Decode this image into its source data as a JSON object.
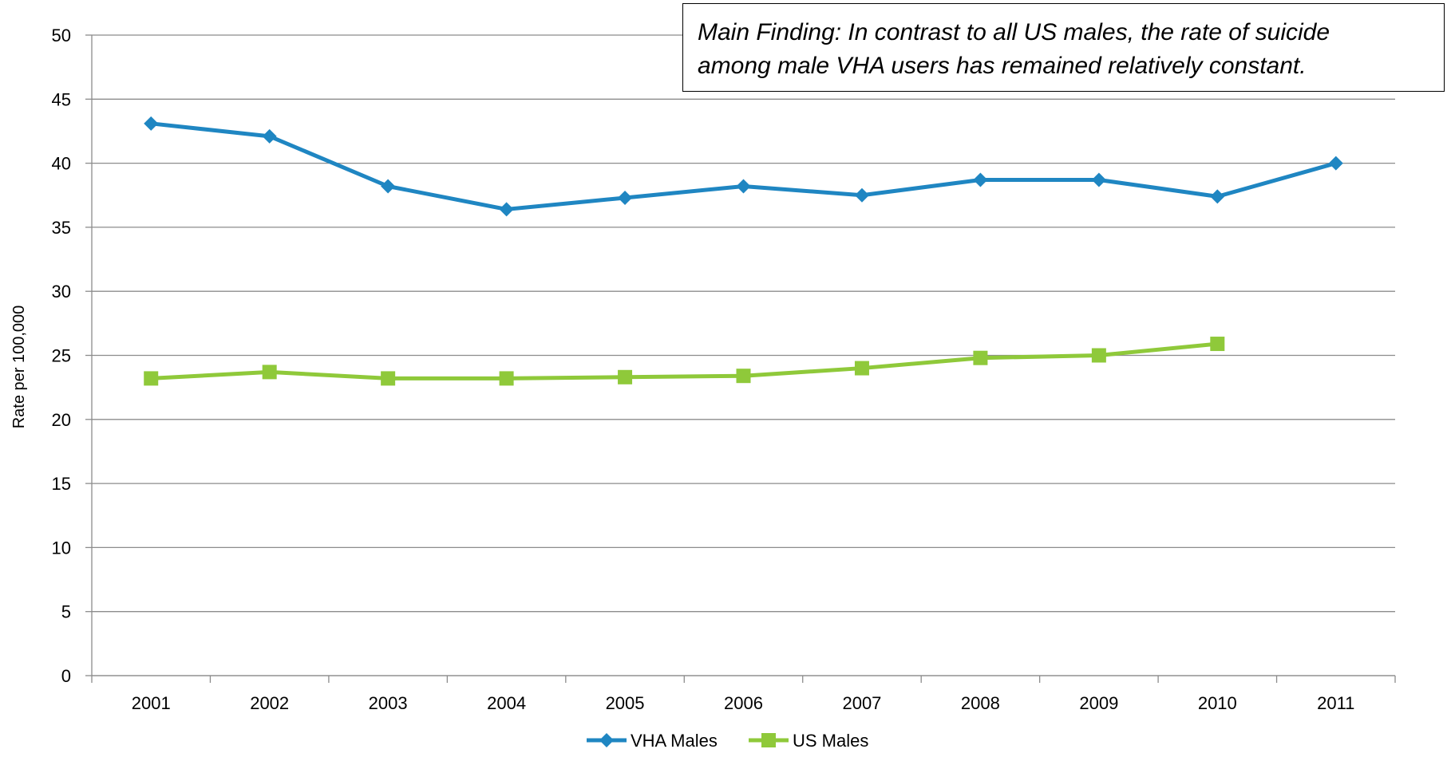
{
  "annotation": {
    "line1": "Main Finding: In contrast to all US males, the rate of suicide",
    "line2": "among male VHA users has remained relatively constant."
  },
  "chart_data": {
    "type": "line",
    "categories": [
      "2001",
      "2002",
      "2003",
      "2004",
      "2005",
      "2006",
      "2007",
      "2008",
      "2009",
      "2010",
      "2011"
    ],
    "series": [
      {
        "name": "VHA Males",
        "color": "#1F86C2",
        "marker": "diamond",
        "values": [
          43.1,
          42.1,
          38.2,
          36.4,
          37.3,
          38.2,
          37.5,
          38.7,
          38.7,
          37.4,
          40.0
        ]
      },
      {
        "name": "US Males",
        "color": "#8FC93A",
        "marker": "square",
        "values": [
          23.2,
          23.7,
          23.2,
          23.2,
          23.3,
          23.4,
          24.0,
          24.8,
          25.0,
          25.9,
          null
        ]
      }
    ],
    "title": "",
    "xlabel": "",
    "ylabel": "Rate per 100,000",
    "ylim": [
      0,
      50
    ],
    "yticks": [
      0,
      5,
      10,
      15,
      20,
      25,
      30,
      35,
      40,
      45,
      50
    ],
    "grid": true,
    "legend": "bottom"
  }
}
